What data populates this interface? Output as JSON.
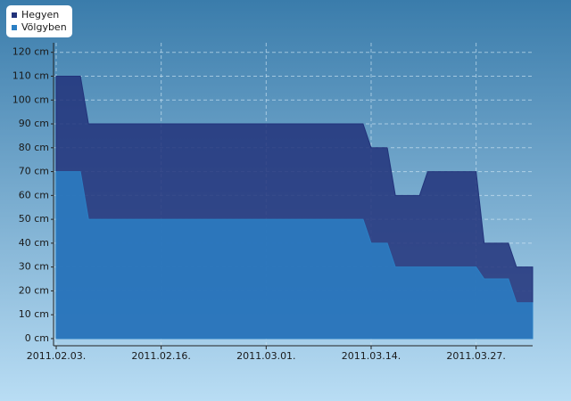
{
  "chart_data": {
    "type": "area",
    "x": [
      "2011-02-03",
      "2011-02-06",
      "2011-02-07",
      "2011-03-13",
      "2011-03-14",
      "2011-03-16",
      "2011-03-17",
      "2011-03-20",
      "2011-03-21",
      "2011-03-27",
      "2011-03-28",
      "2011-03-31",
      "2011-04-01",
      "2011-04-03"
    ],
    "series": [
      {
        "name": "Hegyen",
        "color": "#22337a",
        "values": [
          110,
          110,
          90,
          90,
          80,
          80,
          60,
          60,
          70,
          70,
          40,
          40,
          30,
          30
        ]
      },
      {
        "name": "Völgyben",
        "color": "#2b7fc4",
        "values": [
          70,
          70,
          50,
          50,
          40,
          40,
          30,
          30,
          30,
          30,
          25,
          25,
          15,
          15
        ]
      }
    ],
    "xlim": [
      "2011-02-03",
      "2011-04-03"
    ],
    "xticks": [
      {
        "value": "2011-02-03",
        "label": "2011.02.03."
      },
      {
        "value": "2011-02-16",
        "label": "2011.02.16."
      },
      {
        "value": "2011-03-01",
        "label": "2011.03.01."
      },
      {
        "value": "2011-03-14",
        "label": "2011.03.14."
      },
      {
        "value": "2011-03-27",
        "label": "2011.03.27."
      }
    ],
    "ylim": [
      -3,
      124
    ],
    "yticks": [
      {
        "value": 0,
        "label": "0 cm"
      },
      {
        "value": 10,
        "label": "10 cm"
      },
      {
        "value": 20,
        "label": "20 cm"
      },
      {
        "value": 30,
        "label": "30 cm"
      },
      {
        "value": 40,
        "label": "40 cm"
      },
      {
        "value": 50,
        "label": "50 cm"
      },
      {
        "value": 60,
        "label": "60 cm"
      },
      {
        "value": 70,
        "label": "70 cm"
      },
      {
        "value": 80,
        "label": "80 cm"
      },
      {
        "value": 90,
        "label": "90 cm"
      },
      {
        "value": 100,
        "label": "100 cm"
      },
      {
        "value": 110,
        "label": "110 cm"
      },
      {
        "value": 120,
        "label": "120 cm"
      }
    ],
    "grid": true,
    "legend": "top-left"
  }
}
